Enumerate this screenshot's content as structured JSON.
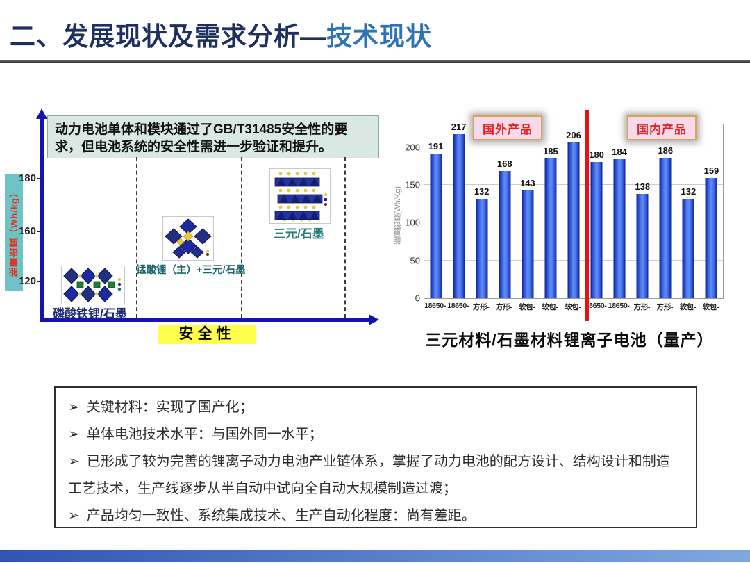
{
  "title": {
    "main": "二、发展现状及需求分析",
    "dash": "—",
    "sub": "技术现状"
  },
  "left_diagram": {
    "note": {
      "line1_pre": "动力电池单体和模块通过了",
      "line1_bold": "GB/T31485",
      "line1_post": "安全性的要求，",
      "line2": "但电池系统的安全性需进一步验证和提升。"
    },
    "y_axis_label": "能量密度（Wh/kg）",
    "y_ticks": [
      "180",
      "160",
      "120"
    ],
    "x_axis_label": "安全性",
    "items": [
      {
        "label": "磷酸铁锂/石墨"
      },
      {
        "label": "锰酸锂（主）+三元/石墨"
      },
      {
        "label": "三元/石墨"
      }
    ]
  },
  "chart_data": {
    "type": "bar",
    "title": "三元材料/石墨材料锂离子电池（量产）",
    "ylabel": "能量密度(Wh/Kg)",
    "ylim": [
      0,
      230
    ],
    "yticks": [
      0,
      50,
      100,
      150,
      200
    ],
    "grid": true,
    "categories": [
      "18650-",
      "18650-",
      "方形-",
      "方形-",
      "软包-",
      "软包-",
      "软包-",
      "18650-",
      "18650-",
      "方形-",
      "方形-",
      "软包-",
      "软包-"
    ],
    "values": [
      191,
      217,
      132,
      168,
      143,
      185,
      206,
      180,
      184,
      138,
      186,
      132,
      159
    ],
    "groups": [
      {
        "name": "国外产品",
        "count": 7
      },
      {
        "name": "国内产品",
        "count": 6
      }
    ],
    "divider_after_index": 6,
    "bar_color": "#2d50d5",
    "divider_color": "#e31313",
    "group_label_bg": "#f6d9ea",
    "group_label_border": "#d9a54e",
    "group_label_text": "#e02424"
  },
  "caption": "三元材料/石墨材料锂离子电池（量产）",
  "bullet_marker": "➢",
  "bullets": [
    "关键材料：实现了国产化；",
    "单体电池技术水平：与国外同一水平；",
    "已形成了较为完善的锂离子动力电池产业链体系，掌握了动力电池的配方设计、结构设计和制造工艺技术，生产线逐步从半自动中试向全自动大规模制造过渡；",
    "产品均匀一致性、系统集成技术、生产自动化程度：尚有差距。"
  ],
  "colors": {
    "title_main": "#1e3060",
    "title_sub": "#2e74b5",
    "axis_blue": "#1414b4",
    "energy_strip_bg": "#6fc3c6",
    "energy_strip_text": "#e2321e",
    "safety_bg": "#ffff4d",
    "note_bg": "#d9e8e3"
  }
}
